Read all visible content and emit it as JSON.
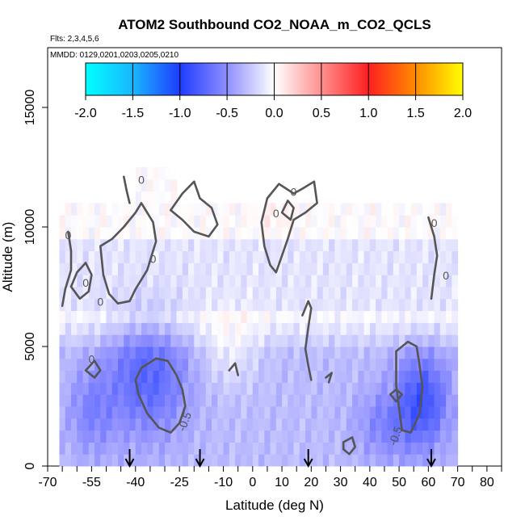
{
  "chart_data": {
    "type": "heatmap",
    "title": "ATOM2 Southbound CO2_NOAA_m_CO2_QCLS",
    "flights_label": "Flts: 2,3,4,5,6",
    "dates_label": "MMDD: 0129,0201,0203,0205,0210",
    "xlabel": "Latitude (deg N)",
    "ylabel": "Altitude (m)",
    "xlim": [
      -70,
      85
    ],
    "ylim": [
      0,
      17500
    ],
    "x_minor_ticks": [
      -70,
      -65,
      -60,
      -55,
      -50,
      -45,
      -40,
      -35,
      -30,
      -25,
      -20,
      -15,
      -10,
      -5,
      0,
      5,
      10,
      15,
      20,
      25,
      30,
      35,
      40,
      45,
      50,
      55,
      60,
      65,
      70,
      75,
      80,
      85
    ],
    "x_tick_labels": [
      "-70",
      "-55",
      "-40",
      "-25",
      "-10",
      "0",
      "10",
      "20",
      "30",
      "40",
      "50",
      "60",
      "70",
      "80"
    ],
    "x_tick_values": [
      -70,
      -55,
      -40,
      -25,
      -10,
      0,
      10,
      20,
      30,
      40,
      50,
      60,
      70,
      80
    ],
    "y_tick_labels": [
      "0",
      "5000",
      "10000",
      "15000"
    ],
    "y_tick_values": [
      0,
      5000,
      10000,
      15000
    ],
    "colorbar": {
      "min": -2.0,
      "max": 2.0,
      "tick_labels": [
        "-2.0",
        "-1.5",
        "-1.0",
        "-0.5",
        "0.0",
        "0.5",
        "1.0",
        "1.5",
        "2.0"
      ],
      "tick_values": [
        -2.0,
        -1.5,
        -1.0,
        -0.5,
        0.0,
        0.5,
        1.0,
        1.5,
        2.0
      ],
      "stops": [
        {
          "v": -2.0,
          "color": "#00ffff"
        },
        {
          "v": -1.5,
          "color": "#19b6ff"
        },
        {
          "v": -1.0,
          "color": "#1f3cff"
        },
        {
          "v": -0.5,
          "color": "#8f8fff"
        },
        {
          "v": 0.0,
          "color": "#ffffff"
        },
        {
          "v": 0.5,
          "color": "#ff8f8f"
        },
        {
          "v": 1.0,
          "color": "#ff1f1f"
        },
        {
          "v": 1.5,
          "color": "#ff8c00"
        },
        {
          "v": 2.0,
          "color": "#ffff00"
        }
      ]
    },
    "contour_line_color": "#555555",
    "contour_labels": [
      {
        "text": "0",
        "lat": -63,
        "alt": 9500
      },
      {
        "text": "0",
        "lat": -57,
        "alt": 7500
      },
      {
        "text": "0",
        "lat": -52,
        "alt": 6700
      },
      {
        "text": "0",
        "lat": -38,
        "alt": 11800
      },
      {
        "text": "0",
        "lat": -34,
        "alt": 8500
      },
      {
        "text": "0",
        "lat": 14,
        "alt": 11300
      },
      {
        "text": "0",
        "lat": 8,
        "alt": 10400
      },
      {
        "text": "0",
        "lat": 62,
        "alt": 10000
      },
      {
        "text": "0",
        "lat": 66,
        "alt": 7800
      },
      {
        "text": "0",
        "lat": -55,
        "alt": 4300
      },
      {
        "text": "-0.5",
        "lat": -22,
        "alt": 1800
      },
      {
        "text": "-0.5",
        "lat": 50,
        "alt": 1200
      }
    ],
    "profile_arrows_lat": [
      -42,
      -18,
      19,
      61
    ],
    "anomaly_field": {
      "lat_start": -65,
      "lat_step": 2,
      "lat_count": 69,
      "alt_start": 0,
      "alt_step": 500,
      "alt_count": 25,
      "note": "gridded anomaly estimated from figure shading"
    }
  }
}
